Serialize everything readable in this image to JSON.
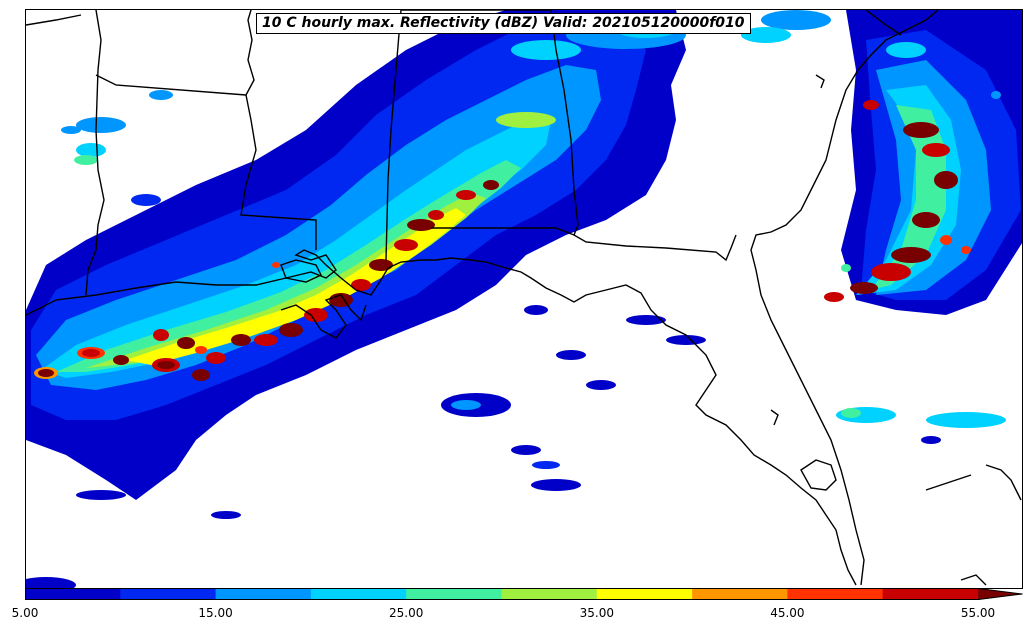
{
  "title": "10 C hourly max. Reflectivity (dBZ) Valid: 202105120000f010",
  "colorbar": {
    "levels": [
      5,
      10,
      15,
      20,
      25,
      30,
      35,
      40,
      45,
      50,
      55,
      60
    ],
    "colors": [
      "#0000c8",
      "#0028f0",
      "#0096ff",
      "#00d2ff",
      "#40f0a0",
      "#a0f040",
      "#ffff00",
      "#ff9600",
      "#ff3200",
      "#c80000",
      "#780000"
    ],
    "tick_labels": [
      "5.00",
      "15.00",
      "25.00",
      "35.00",
      "45.00",
      "55.00"
    ],
    "extend": "max"
  },
  "map": {
    "region": "Southeastern United States and Gulf of Mexico"
  }
}
